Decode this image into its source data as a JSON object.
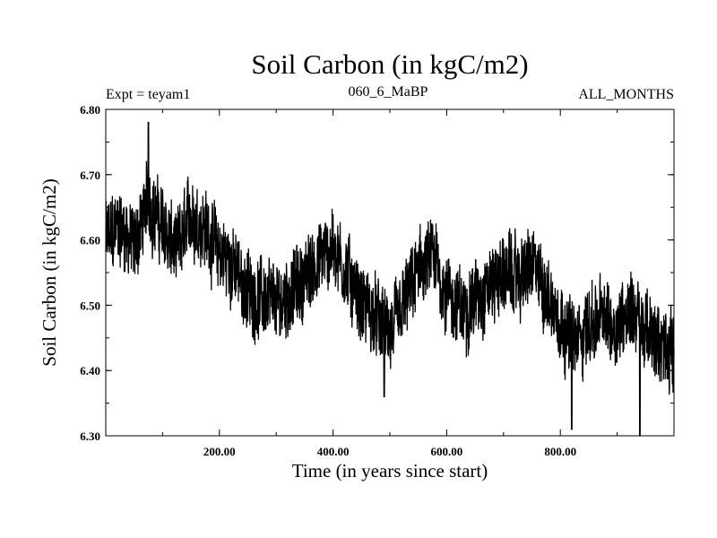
{
  "chart_data": {
    "type": "line",
    "title": "Soil Carbon (in kgC/m2)",
    "subtitle_left": "Expt = teyam1",
    "subtitle_center": "060_6_MaBP",
    "subtitle_right": "ALL_MONTHS",
    "xlabel": "Time (in years since start)",
    "ylabel": "Soil Carbon (in kgC/m2)",
    "xlim": [
      0,
      1000
    ],
    "ylim": [
      6.3,
      6.8
    ],
    "xticks": [
      200,
      400,
      600,
      800
    ],
    "xtick_labels": [
      "200.00",
      "400.00",
      "600.00",
      "800.00"
    ],
    "yticks": [
      6.3,
      6.4,
      6.5,
      6.6,
      6.7,
      6.8
    ],
    "ytick_labels": [
      "6.30",
      "6.40",
      "6.50",
      "6.60",
      "6.70",
      "6.80"
    ],
    "grid": false,
    "series": [
      {
        "name": "Soil Carbon",
        "color": "#000000",
        "x": [
          0,
          25,
          50,
          75,
          100,
          125,
          150,
          175,
          200,
          225,
          250,
          275,
          300,
          325,
          350,
          375,
          400,
          425,
          450,
          475,
          500,
          525,
          550,
          575,
          600,
          625,
          650,
          675,
          700,
          725,
          750,
          775,
          800,
          825,
          850,
          875,
          900,
          925,
          950,
          975,
          1000
        ],
        "values": [
          6.6,
          6.62,
          6.59,
          6.66,
          6.62,
          6.58,
          6.64,
          6.62,
          6.58,
          6.56,
          6.52,
          6.51,
          6.5,
          6.52,
          6.54,
          6.57,
          6.59,
          6.55,
          6.5,
          6.48,
          6.45,
          6.5,
          6.55,
          6.57,
          6.52,
          6.49,
          6.51,
          6.53,
          6.55,
          6.54,
          6.56,
          6.52,
          6.48,
          6.44,
          6.47,
          6.48,
          6.47,
          6.5,
          6.46,
          6.44,
          6.43
        ],
        "max_point": [
          75,
          6.78
        ],
        "min_points": [
          [
            490,
            6.36
          ],
          [
            820,
            6.31
          ],
          [
            940,
            6.3
          ]
        ]
      }
    ]
  }
}
